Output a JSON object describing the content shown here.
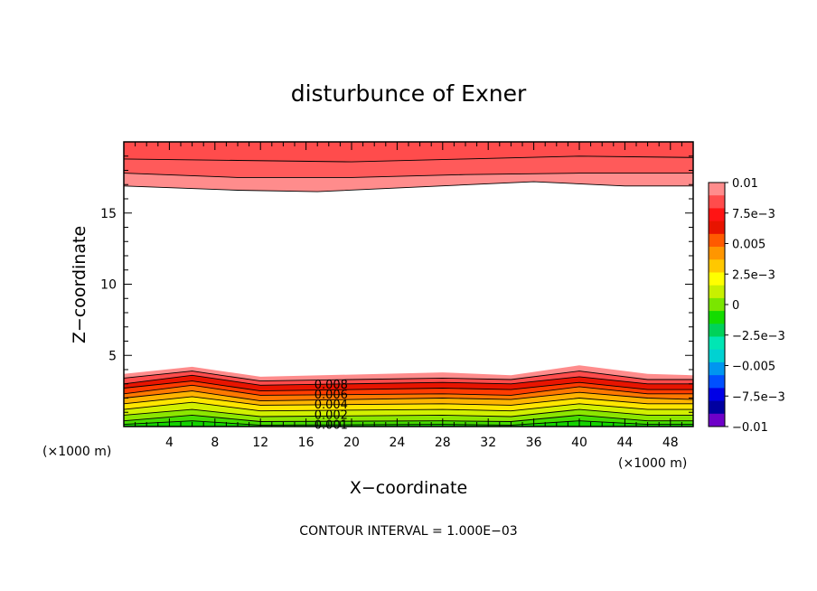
{
  "chart_data": {
    "type": "contour",
    "title": "disturbunce of Exner",
    "xlabel": "X−coordinate",
    "ylabel": "Z−coordinate",
    "x_unit_left": "(×1000 m)",
    "x_unit_right": "(×1000 m)",
    "x_range": [
      0,
      50
    ],
    "y_range": [
      0,
      20
    ],
    "x_ticks": [
      4,
      8,
      12,
      16,
      20,
      24,
      28,
      32,
      36,
      40,
      44,
      48
    ],
    "y_ticks": [
      5,
      10,
      15
    ],
    "contour_interval_text": "CONTOUR INTERVAL = 1.000E−03",
    "contour_labels": [
      "0.008",
      "0.006",
      "0.004",
      "0.002",
      "0.001"
    ],
    "colorbar": {
      "labels": [
        "0.01",
        "7.5e−3",
        "0.005",
        "2.5e−3",
        "0",
        "−2.5e−3",
        "−0.005",
        "−7.5e−3",
        "−0.01"
      ],
      "colors": [
        "#ff8c8c",
        "#ff4c4c",
        "#ff1414",
        "#e81400",
        "#ff5a00",
        "#ff9600",
        "#ffc800",
        "#ffff00",
        "#c8f000",
        "#7ae600",
        "#14dc00",
        "#00d25a",
        "#00e6b4",
        "#00d2d2",
        "#0096f0",
        "#0050ff",
        "#0000e6",
        "#0000a0",
        "#6e00c8"
      ]
    },
    "upper_layers": [
      {
        "value": 0.0095,
        "color": "#ff8c8c",
        "profile": [
          [
            0,
            16.9
          ],
          [
            10,
            16.6
          ],
          [
            17,
            16.5
          ],
          [
            25,
            16.8
          ],
          [
            36,
            17.2
          ],
          [
            44,
            16.9
          ],
          [
            50,
            16.9
          ]
        ]
      },
      {
        "value": 0.0085,
        "color": "#ff5a5a",
        "profile": [
          [
            0,
            17.8
          ],
          [
            10,
            17.5
          ],
          [
            20,
            17.5
          ],
          [
            30,
            17.7
          ],
          [
            40,
            17.8
          ],
          [
            50,
            17.8
          ]
        ]
      },
      {
        "value": 0.0095,
        "color": "#ff4c4c",
        "profile": [
          [
            0,
            18.8
          ],
          [
            10,
            18.7
          ],
          [
            20,
            18.6
          ],
          [
            30,
            18.8
          ],
          [
            40,
            19.0
          ],
          [
            50,
            18.9
          ]
        ]
      }
    ],
    "lower_layers": [
      {
        "value": 0.0095,
        "color": "#ff8c8c",
        "profile": [
          [
            0,
            3.7
          ],
          [
            6,
            4.2
          ],
          [
            12,
            3.5
          ],
          [
            28,
            3.8
          ],
          [
            34,
            3.6
          ],
          [
            40,
            4.3
          ],
          [
            46,
            3.7
          ],
          [
            50,
            3.6
          ]
        ]
      },
      {
        "value": 0.0085,
        "color": "#ff4c4c",
        "profile": [
          [
            0,
            3.4
          ],
          [
            6,
            3.9
          ],
          [
            12,
            3.2
          ],
          [
            28,
            3.4
          ],
          [
            34,
            3.3
          ],
          [
            40,
            3.9
          ],
          [
            46,
            3.3
          ],
          [
            50,
            3.3
          ]
        ]
      },
      {
        "value": 0.0075,
        "color": "#e81400",
        "profile": [
          [
            0,
            3.0
          ],
          [
            6,
            3.6
          ],
          [
            12,
            2.9
          ],
          [
            28,
            3.1
          ],
          [
            34,
            3.0
          ],
          [
            40,
            3.5
          ],
          [
            46,
            3.0
          ],
          [
            50,
            3.0
          ]
        ]
      },
      {
        "value": 0.0065,
        "color": "#ff3c00",
        "profile": [
          [
            0,
            2.7
          ],
          [
            6,
            3.2
          ],
          [
            12,
            2.5
          ],
          [
            28,
            2.7
          ],
          [
            34,
            2.6
          ],
          [
            40,
            3.1
          ],
          [
            46,
            2.6
          ],
          [
            50,
            2.6
          ]
        ]
      },
      {
        "value": 0.0055,
        "color": "#ff7800",
        "profile": [
          [
            0,
            2.3
          ],
          [
            6,
            2.9
          ],
          [
            12,
            2.2
          ],
          [
            28,
            2.3
          ],
          [
            34,
            2.2
          ],
          [
            40,
            2.8
          ],
          [
            46,
            2.3
          ],
          [
            50,
            2.3
          ]
        ]
      },
      {
        "value": 0.0045,
        "color": "#ffb400",
        "profile": [
          [
            0,
            2.0
          ],
          [
            6,
            2.5
          ],
          [
            12,
            1.8
          ],
          [
            28,
            2.0
          ],
          [
            34,
            1.9
          ],
          [
            40,
            2.4
          ],
          [
            46,
            2.0
          ],
          [
            50,
            1.9
          ]
        ]
      },
      {
        "value": 0.0035,
        "color": "#ffe600",
        "profile": [
          [
            0,
            1.6
          ],
          [
            6,
            2.1
          ],
          [
            12,
            1.5
          ],
          [
            28,
            1.6
          ],
          [
            34,
            1.5
          ],
          [
            40,
            2.0
          ],
          [
            46,
            1.6
          ],
          [
            50,
            1.6
          ]
        ]
      },
      {
        "value": 0.0025,
        "color": "#d2f000",
        "profile": [
          [
            0,
            1.2
          ],
          [
            6,
            1.7
          ],
          [
            12,
            1.1
          ],
          [
            28,
            1.2
          ],
          [
            34,
            1.1
          ],
          [
            40,
            1.6
          ],
          [
            46,
            1.2
          ],
          [
            50,
            1.2
          ]
        ]
      },
      {
        "value": 0.0015,
        "color": "#8ce600",
        "profile": [
          [
            0,
            0.8
          ],
          [
            6,
            1.2
          ],
          [
            12,
            0.7
          ],
          [
            28,
            0.8
          ],
          [
            34,
            0.7
          ],
          [
            40,
            1.2
          ],
          [
            46,
            0.8
          ],
          [
            50,
            0.8
          ]
        ]
      },
      {
        "value": 0.0005,
        "color": "#46dc00",
        "profile": [
          [
            0,
            0.4
          ],
          [
            6,
            0.8
          ],
          [
            12,
            0.35
          ],
          [
            28,
            0.4
          ],
          [
            34,
            0.35
          ],
          [
            40,
            0.8
          ],
          [
            46,
            0.4
          ],
          [
            50,
            0.4
          ]
        ]
      },
      {
        "value": 0.0002,
        "color": "#14d200",
        "profile": [
          [
            0,
            0.15
          ],
          [
            6,
            0.4
          ],
          [
            12,
            0.1
          ],
          [
            28,
            0.15
          ],
          [
            34,
            0.1
          ],
          [
            40,
            0.4
          ],
          [
            46,
            0.15
          ],
          [
            50,
            0.15
          ]
        ]
      }
    ]
  }
}
